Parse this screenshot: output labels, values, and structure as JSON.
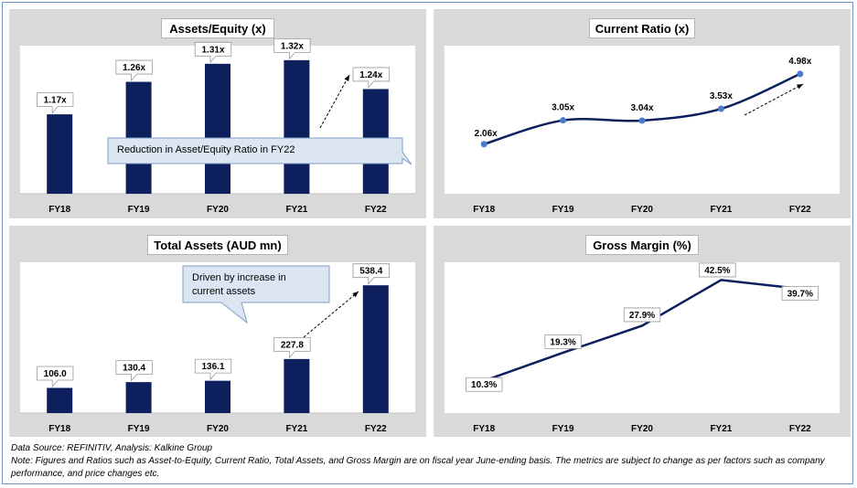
{
  "colors": {
    "bar": "#0d1f5c",
    "line": "#0d1f5c",
    "marker": "#4a7bd0",
    "panel": "#d9d9d9",
    "callout": "#dce6f2",
    "callout_border": "#7f9fc5"
  },
  "charts": [
    {
      "id": "assets-equity",
      "title": "Assets/Equity (x)",
      "callout": "Reduction in Asset/Equity Ratio in FY22"
    },
    {
      "id": "current-ratio",
      "title": "Current Ratio (x)"
    },
    {
      "id": "total-assets",
      "title": "Total Assets (AUD mn)",
      "callout": "Driven by increase in current assets"
    },
    {
      "id": "gross-margin",
      "title": "Gross Margin (%)"
    }
  ],
  "chart_data": [
    {
      "type": "bar",
      "title": "Assets/Equity (x)",
      "categories": [
        "FY18",
        "FY19",
        "FY20",
        "FY21",
        "FY22"
      ],
      "values": [
        1.17,
        1.26,
        1.31,
        1.32,
        1.24
      ],
      "data_labels": [
        "1.17x",
        "1.26x",
        "1.31x",
        "1.32x",
        "1.24x"
      ],
      "ylim": [
        0.95,
        1.35
      ],
      "grid": false
    },
    {
      "type": "line",
      "title": "Current Ratio (x)",
      "categories": [
        "FY18",
        "FY19",
        "FY20",
        "FY21",
        "FY22"
      ],
      "values": [
        2.06,
        3.05,
        3.04,
        3.53,
        4.98
      ],
      "data_labels": [
        "2.06x",
        "3.05x",
        "3.04x",
        "3.53x",
        "4.98x"
      ],
      "ylim": [
        0,
        6
      ],
      "grid": false
    },
    {
      "type": "bar",
      "title": "Total Assets (AUD mn)",
      "categories": [
        "FY18",
        "FY19",
        "FY20",
        "FY21",
        "FY22"
      ],
      "values": [
        106.0,
        130.4,
        136.1,
        227.8,
        538.4
      ],
      "data_labels": [
        "106.0",
        "130.4",
        "136.1",
        "227.8",
        "538.4"
      ],
      "ylim": [
        0,
        620
      ],
      "grid": false
    },
    {
      "type": "line",
      "title": "Gross Margin (%)",
      "categories": [
        "FY18",
        "FY19",
        "FY20",
        "FY21",
        "FY22"
      ],
      "values": [
        10.3,
        19.3,
        27.9,
        42.5,
        39.7
      ],
      "data_labels": [
        "10.3%",
        "19.3%",
        "27.9%",
        "42.5%",
        "39.7%"
      ],
      "ylim": [
        0,
        47
      ],
      "grid": false
    }
  ],
  "footer": {
    "source": "Data Source: REFINITIV, Analysis: Kalkine Group",
    "note": "Note: Figures and Ratios such as Asset-to-Equity, Current Ratio, Total Assets, and Gross Margin are on fiscal year June-ending basis. The metrics are subject to change as per factors such as company performance, and price changes etc."
  }
}
